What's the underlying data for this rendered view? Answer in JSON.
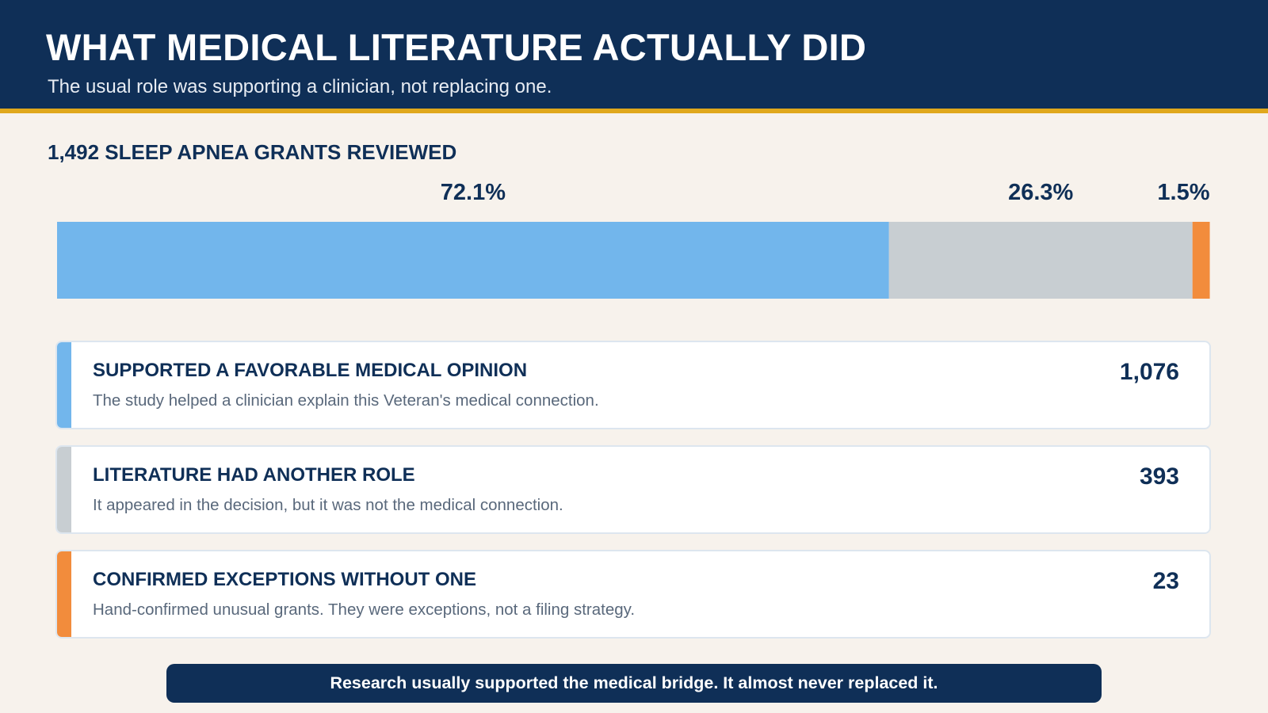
{
  "header": {
    "title": "WHAT MEDICAL LITERATURE ACTUALLY DID",
    "subtitle": "The usual role was supporting a clinician, not replacing one."
  },
  "section": {
    "label": "1,492 SLEEP APNEA GRANTS REVIEWED"
  },
  "chart_data": {
    "type": "bar",
    "orientation": "horizontal-stacked-100",
    "title": "1,492 SLEEP APNEA GRANTS REVIEWED",
    "total": 1492,
    "series": [
      {
        "label": "72.1%",
        "value": 72.1,
        "count": 1076,
        "color": "#72b6ec"
      },
      {
        "label": "26.3%",
        "value": 26.3,
        "count": 393,
        "color": "#c8ced2"
      },
      {
        "label": "1.5%",
        "value": 1.5,
        "count": 23,
        "color": "#f28c3c"
      }
    ],
    "xlim": [
      0,
      100
    ],
    "grid": false
  },
  "cards": [
    {
      "title": "SUPPORTED A FAVORABLE MEDICAL OPINION",
      "description": "The study helped a clinician explain this Veteran's medical connection.",
      "count": "1,076",
      "color": "#72b6ec"
    },
    {
      "title": "LITERATURE HAD ANOTHER ROLE",
      "description": "It appeared in the decision, but it was not the medical connection.",
      "count": "393",
      "color": "#c8ced2"
    },
    {
      "title": "CONFIRMED EXCEPTIONS WITHOUT ONE",
      "description": "Hand-confirmed unusual grants. They were exceptions, not a filing strategy.",
      "count": "23",
      "color": "#f28c3c"
    }
  ],
  "footer": {
    "message": "Research usually supported the medical bridge. It almost never replaced it."
  }
}
